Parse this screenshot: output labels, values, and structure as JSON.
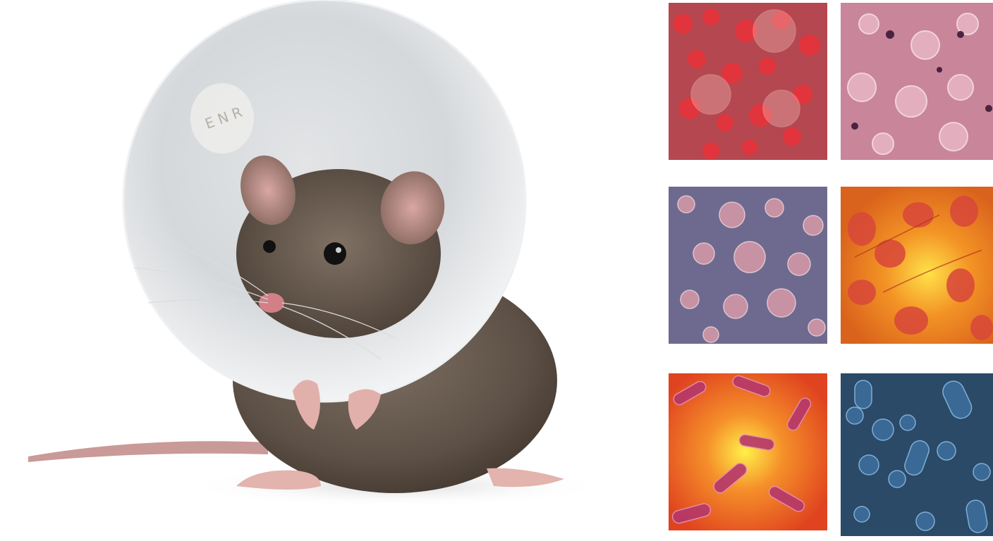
{
  "photo": {
    "subject": "mouse-in-cone-collar",
    "collar_label": "E N R"
  },
  "micrographs": [
    {
      "name": "red-blood-cells",
      "bg": "#b4474f",
      "cell": "#e8333a"
    },
    {
      "name": "pink-tissue-cells",
      "bg": "#c9859a",
      "cell": "#e6b3c3"
    },
    {
      "name": "purple-cells",
      "bg": "#6e6a8f",
      "cell": "#d79aa7"
    },
    {
      "name": "orange-cells",
      "bg": "#e9751e",
      "cell": "#d8473a"
    },
    {
      "name": "orange-bacteria",
      "bg": "#e35a25",
      "cell": "#b5376b"
    },
    {
      "name": "blue-bacteria",
      "bg": "#2b4a68",
      "cell": "#6d9ec6"
    }
  ]
}
